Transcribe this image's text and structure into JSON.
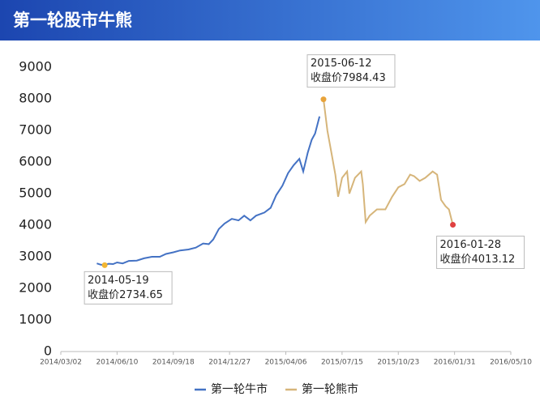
{
  "chart_data": {
    "type": "line",
    "title": "第一轮股市牛熊",
    "xlim": [
      "2014-03-02",
      "2016-05-10"
    ],
    "xticks": [
      {
        "value": "2014-03-02",
        "label": "2014/03/02"
      },
      {
        "value": "2014-06-10",
        "label": "2014/06/10"
      },
      {
        "value": "2014-09-18",
        "label": "2014/09/18"
      },
      {
        "value": "2014-12-27",
        "label": "2014/12/27"
      },
      {
        "value": "2015-04-06",
        "label": "2015/04/06"
      },
      {
        "value": "2015-07-15",
        "label": "2015/07/15"
      },
      {
        "value": "2015-10-23",
        "label": "2015/10/23"
      },
      {
        "value": "2016-01-31",
        "label": "2016/01/31"
      },
      {
        "value": "2016-05-10",
        "label": "2016/05/10"
      }
    ],
    "ylim": [
      0,
      9000
    ],
    "yticks": [
      0,
      1000,
      2000,
      3000,
      4000,
      5000,
      6000,
      7000,
      8000,
      9000
    ],
    "series": [
      {
        "name": "第一轮牛市",
        "color": "#4472c4",
        "x": [
          "2014-05-05",
          "2014-05-12",
          "2014-05-19",
          "2014-05-26",
          "2014-06-03",
          "2014-06-10",
          "2014-06-20",
          "2014-07-01",
          "2014-07-15",
          "2014-07-28",
          "2014-08-11",
          "2014-08-25",
          "2014-09-05",
          "2014-09-18",
          "2014-09-30",
          "2014-10-15",
          "2014-10-28",
          "2014-11-10",
          "2014-11-20",
          "2014-11-28",
          "2014-12-08",
          "2014-12-18",
          "2014-12-31",
          "2015-01-12",
          "2015-01-22",
          "2015-02-02",
          "2015-02-12",
          "2015-02-27",
          "2015-03-10",
          "2015-03-20",
          "2015-03-31",
          "2015-04-10",
          "2015-04-20",
          "2015-04-30",
          "2015-05-07",
          "2015-05-15",
          "2015-05-22",
          "2015-05-28",
          "2015-06-05"
        ],
        "values": [
          2790,
          2750,
          2734.65,
          2780,
          2770,
          2820,
          2790,
          2870,
          2880,
          2950,
          3000,
          3000,
          3090,
          3140,
          3200,
          3230,
          3290,
          3420,
          3400,
          3550,
          3880,
          4050,
          4200,
          4150,
          4300,
          4150,
          4300,
          4400,
          4550,
          4950,
          5250,
          5650,
          5900,
          6100,
          5700,
          6300,
          6700,
          6900,
          7440
        ]
      },
      {
        "name": "第一轮熊市",
        "color": "#d6b57a",
        "x": [
          "2015-06-12",
          "2015-06-19",
          "2015-06-26",
          "2015-07-03",
          "2015-07-08",
          "2015-07-15",
          "2015-07-24",
          "2015-07-28",
          "2015-08-07",
          "2015-08-18",
          "2015-08-21",
          "2015-08-26",
          "2015-09-02",
          "2015-09-15",
          "2015-09-30",
          "2015-10-12",
          "2015-10-23",
          "2015-11-03",
          "2015-11-13",
          "2015-11-20",
          "2015-11-30",
          "2015-12-10",
          "2015-12-23",
          "2015-12-31",
          "2016-01-07",
          "2016-01-15",
          "2016-01-21",
          "2016-01-28"
        ],
        "values": [
          7984.43,
          6990,
          6300,
          5600,
          4900,
          5500,
          5700,
          5000,
          5500,
          5700,
          5300,
          4100,
          4300,
          4500,
          4500,
          4900,
          5200,
          5300,
          5600,
          5550,
          5400,
          5500,
          5700,
          5600,
          4800,
          4600,
          4500,
          4013.12
        ]
      }
    ],
    "annotations": [
      {
        "series": 0,
        "index": 2,
        "color": "#f2b632",
        "lines": [
          "2014-05-19",
          "收盘价2734.65"
        ]
      },
      {
        "series": 1,
        "index": 0,
        "color": "#e8a33a",
        "lines": [
          "2015-06-12",
          "收盘价7984.43"
        ]
      },
      {
        "series": 1,
        "index": 27,
        "color": "#e04040",
        "lines": [
          "2016-01-28",
          "收盘价4013.12"
        ]
      }
    ]
  }
}
